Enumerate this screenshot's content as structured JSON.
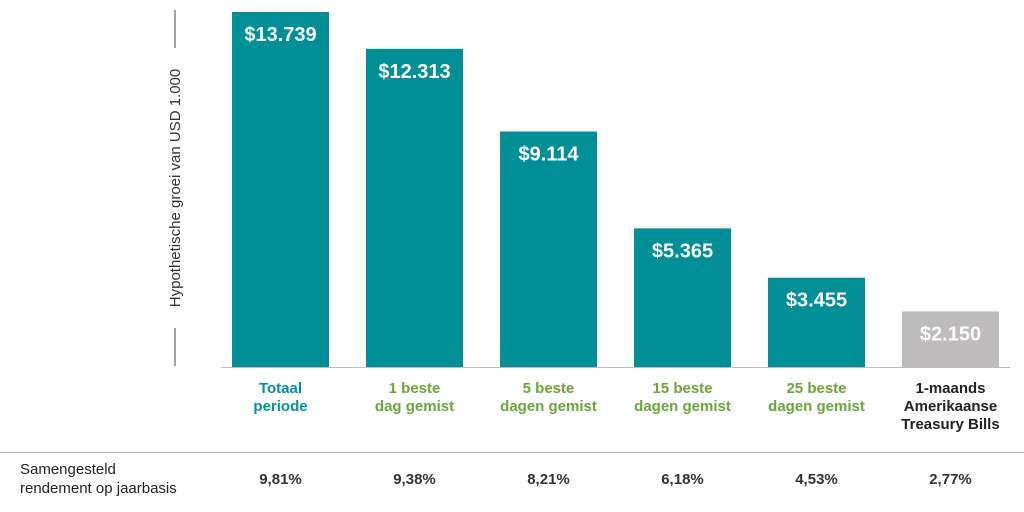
{
  "chart_data": {
    "type": "bar",
    "ylabel": "Hypothetische groei van USD 1.000",
    "categories": [
      [
        "Totaal",
        "periode"
      ],
      [
        "1 beste",
        "dag gemist"
      ],
      [
        "5 beste",
        "dagen gemist"
      ],
      [
        "15 beste",
        "dagen gemist"
      ],
      [
        "25 beste",
        "dagen gemist"
      ],
      [
        "1-maands",
        "Amerikaanse",
        "Treasury Bills"
      ]
    ],
    "values": [
      13739,
      12313,
      9114,
      5365,
      3455,
      2150
    ],
    "value_labels": [
      "$13.739",
      "$12.313",
      "$9.114",
      "$5.365",
      "$3.455",
      "$2.150"
    ],
    "ylim": [
      0,
      13739
    ],
    "bar_colors": [
      "#008f96",
      "#008f96",
      "#008f96",
      "#008f96",
      "#008f96",
      "#bdbbbb"
    ],
    "category_colors": [
      "#00929a",
      "#6aa63a",
      "#6aa63a",
      "#6aa63a",
      "#6aa63a",
      "#222222"
    ],
    "annual_return": {
      "label": [
        "Samengesteld",
        "rendement op jaarbasis"
      ],
      "values": [
        "9,81%",
        "9,38%",
        "8,21%",
        "6,18%",
        "4,53%",
        "2,77%"
      ]
    }
  }
}
